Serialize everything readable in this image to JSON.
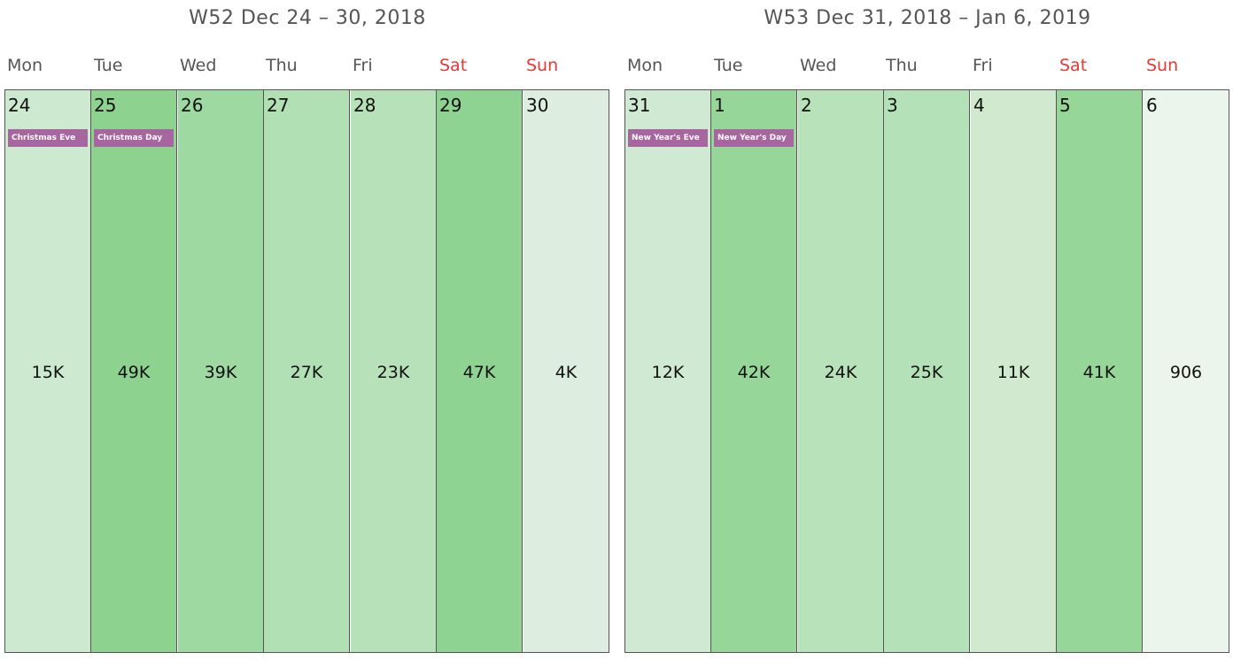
{
  "weeks": [
    {
      "title": "W52 Dec 24 – 30, 2018",
      "days": [
        {
          "dow": "Mon",
          "num": "24",
          "value": "15K",
          "holiday": "Christmas Eve",
          "weekend": false,
          "color": "#cde9d0"
        },
        {
          "dow": "Tue",
          "num": "25",
          "value": "49K",
          "holiday": "Christmas Day",
          "weekend": false,
          "color": "#8dd38f"
        },
        {
          "dow": "Wed",
          "num": "26",
          "value": "39K",
          "holiday": "",
          "weekend": false,
          "color": "#9fd9a2"
        },
        {
          "dow": "Thu",
          "num": "27",
          "value": "27K",
          "holiday": "",
          "weekend": false,
          "color": "#b1e0b4"
        },
        {
          "dow": "Fri",
          "num": "28",
          "value": "23K",
          "holiday": "",
          "weekend": false,
          "color": "#b7e2b9"
        },
        {
          "dow": "Sat",
          "num": "29",
          "value": "47K",
          "holiday": "",
          "weekend": true,
          "color": "#8fd393"
        },
        {
          "dow": "Sun",
          "num": "30",
          "value": "4K",
          "holiday": "",
          "weekend": true,
          "color": "#ddeee0"
        }
      ]
    },
    {
      "title": "W53 Dec 31, 2018 – Jan 6, 2019",
      "days": [
        {
          "dow": "Mon",
          "num": "31",
          "value": "12K",
          "holiday": "New Year's Eve",
          "weekend": false,
          "color": "#cfe9d2"
        },
        {
          "dow": "Tue",
          "num": "1",
          "value": "42K",
          "holiday": "New Year's Day",
          "weekend": false,
          "color": "#97d699"
        },
        {
          "dow": "Wed",
          "num": "2",
          "value": "24K",
          "holiday": "",
          "weekend": false,
          "color": "#b7e2ba"
        },
        {
          "dow": "Thu",
          "num": "3",
          "value": "25K",
          "holiday": "",
          "weekend": false,
          "color": "#b4e1b7"
        },
        {
          "dow": "Fri",
          "num": "4",
          "value": "11K",
          "holiday": "",
          "weekend": false,
          "color": "#d1eacf"
        },
        {
          "dow": "Sat",
          "num": "5",
          "value": "41K",
          "holiday": "",
          "weekend": true,
          "color": "#97d699"
        },
        {
          "dow": "Sun",
          "num": "6",
          "value": "906",
          "holiday": "",
          "weekend": true,
          "color": "#ebf5eb"
        }
      ]
    }
  ]
}
